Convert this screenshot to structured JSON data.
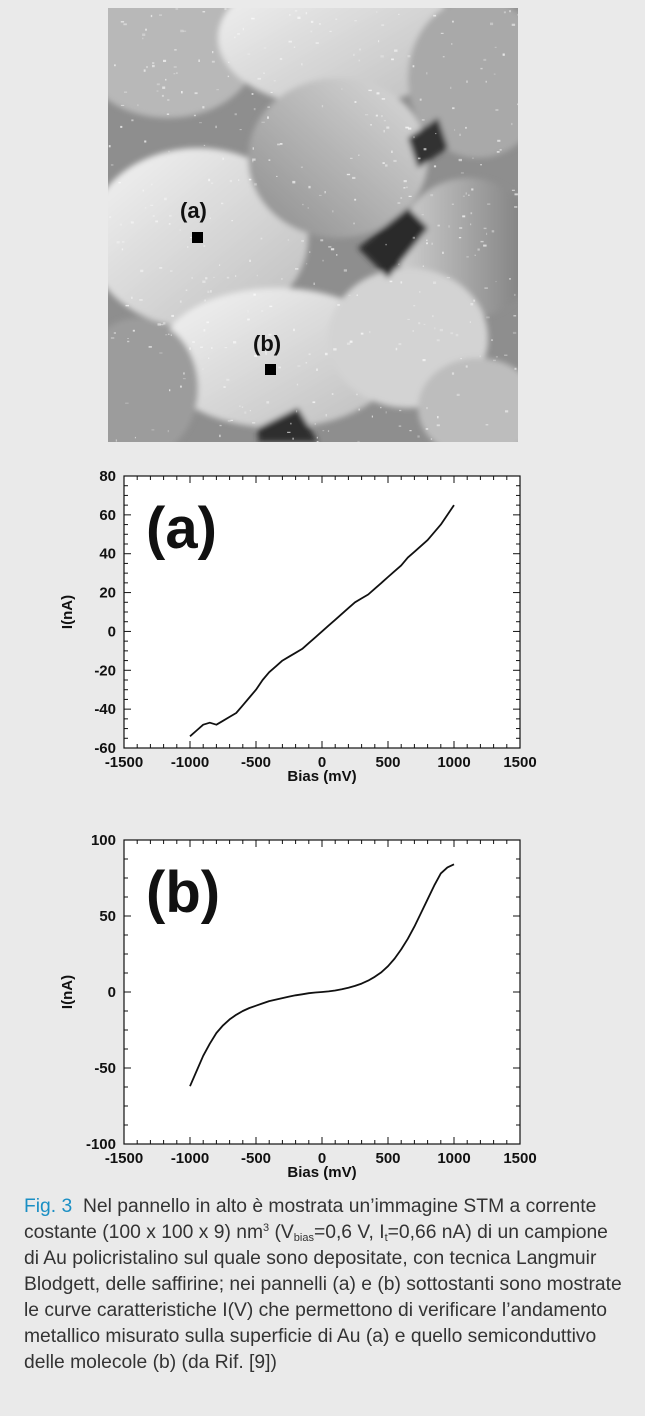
{
  "stm_image": {
    "markers": [
      {
        "label": "(a)"
      },
      {
        "label": "(b)"
      }
    ]
  },
  "chart_data": [
    {
      "type": "line",
      "panel_label": "(a)",
      "xlabel": "Bias (mV)",
      "ylabel": "I(nA)",
      "xlim": [
        -1500,
        1500
      ],
      "ylim": [
        -60,
        80
      ],
      "xticks": [
        -1500,
        -1000,
        -500,
        0,
        500,
        1000,
        1500
      ],
      "yticks": [
        80,
        60,
        40,
        20,
        0,
        -20,
        -40,
        -60
      ],
      "series": [
        {
          "x": [
            -1000,
            -950,
            -900,
            -850,
            -800,
            -750,
            -700,
            -650,
            -600,
            -550,
            -500,
            -450,
            -400,
            -350,
            -300,
            -250,
            -200,
            -150,
            -100,
            -50,
            0,
            50,
            100,
            150,
            200,
            250,
            300,
            350,
            400,
            450,
            500,
            550,
            600,
            650,
            700,
            750,
            800,
            850,
            900,
            950,
            1000
          ],
          "y": [
            -54,
            -51,
            -48,
            -47,
            -48,
            -46,
            -44,
            -42,
            -38,
            -34,
            -30,
            -25,
            -21,
            -18,
            -15,
            -13,
            -11,
            -9,
            -6,
            -3,
            0,
            3,
            6,
            9,
            12,
            15,
            17,
            19,
            22,
            25,
            28,
            31,
            34,
            38,
            41,
            44,
            47,
            51,
            55,
            60,
            65
          ]
        }
      ]
    },
    {
      "type": "line",
      "panel_label": "(b)",
      "xlabel": "Bias (mV)",
      "ylabel": "I(nA)",
      "xlim": [
        -1500,
        1500
      ],
      "ylim": [
        -100,
        100
      ],
      "xticks": [
        -1500,
        -1000,
        -500,
        0,
        500,
        1000,
        1500
      ],
      "yticks": [
        100,
        50,
        0,
        -50,
        -100
      ],
      "series": [
        {
          "x": [
            -1000,
            -950,
            -900,
            -850,
            -800,
            -750,
            -700,
            -650,
            -600,
            -550,
            -500,
            -450,
            -400,
            -350,
            -300,
            -250,
            -200,
            -150,
            -100,
            -50,
            0,
            50,
            100,
            150,
            200,
            250,
            300,
            350,
            400,
            450,
            500,
            550,
            600,
            650,
            700,
            750,
            800,
            850,
            900,
            950,
            1000
          ],
          "y": [
            -62,
            -52,
            -42,
            -34,
            -27,
            -22,
            -18,
            -15,
            -12.5,
            -10.5,
            -9,
            -7.5,
            -6,
            -5,
            -4,
            -3,
            -2.2,
            -1.5,
            -0.8,
            -0.3,
            0,
            0.4,
            1,
            1.8,
            2.8,
            4,
            5.5,
            7.5,
            10,
            13,
            17,
            22,
            28,
            35,
            43,
            52,
            61,
            70,
            78,
            82,
            84
          ]
        }
      ]
    }
  ],
  "caption": {
    "label": "Fig. 3",
    "part1": "Nel pannello in alto è mostrata un’immagine STM a corrente costante (100 x 100 x 9) nm",
    "sup": "3",
    "part2": " (V",
    "sub1": "bias",
    "part3": "=0,6 V, I",
    "sub2": "t",
    "part4": "=0,66 nA) di un campione di Au policristalino sul quale sono depositate, con tecnica Langmuir Blodgett, delle saffirine; nei pannelli (a) e (b) sottostanti sono mostrate le curve caratteristiche I(V) che permettono di verificare l’andamento metallico misurato sulla superficie di Au (a) e quello semiconduttivo delle molecole (b) (da Rif. [9])"
  }
}
